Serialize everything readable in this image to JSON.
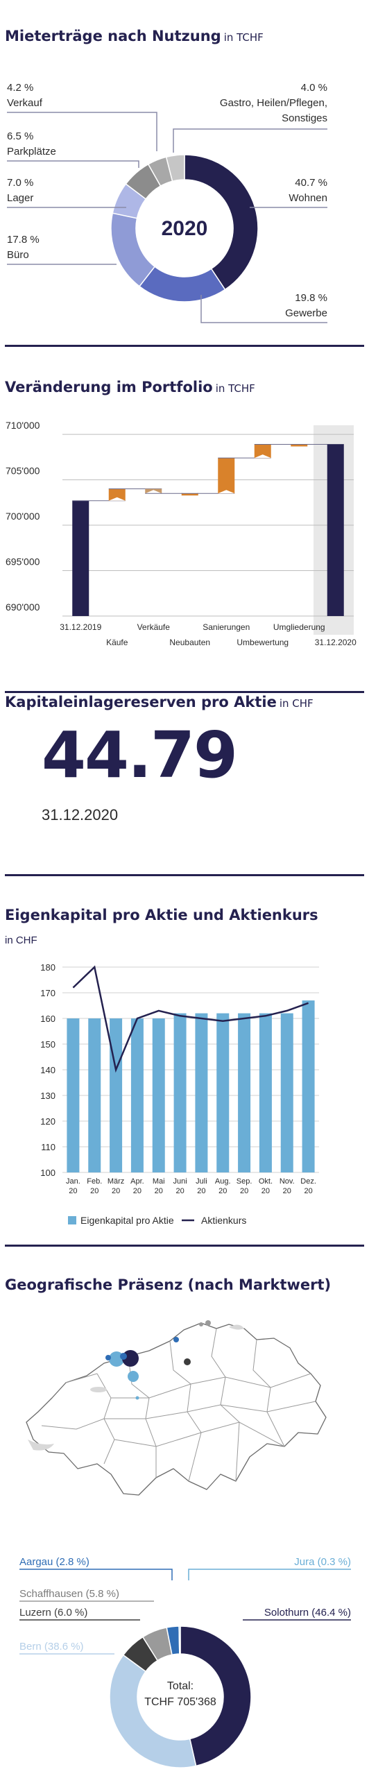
{
  "section1": {
    "title": "Mieterträge nach Nutzung",
    "unit": "in TCHF",
    "center_label": "2020",
    "labels": [
      {
        "pct": "4.2 %",
        "name": "Verkauf"
      },
      {
        "pct": "4.0 %",
        "name": "Gastro, Heilen/Pflegen,",
        "name2": "Sonstiges"
      },
      {
        "pct": "6.5 %",
        "name": "Parkplätze"
      },
      {
        "pct": "7.0 %",
        "name": "Lager"
      },
      {
        "pct": "40.7 %",
        "name": "Wohnen"
      },
      {
        "pct": "17.8 %",
        "name": "Büro"
      },
      {
        "pct": "19.8 %",
        "name": "Gewerbe"
      }
    ]
  },
  "section2": {
    "title": "Veränderung im Portfolio",
    "unit": "in TCHF"
  },
  "section3": {
    "title": "Kapitaleinlagereserven pro Aktie",
    "unit": "in CHF",
    "value": "44.79",
    "date": "31.12.2020"
  },
  "section4": {
    "title": "Eigenkapital pro Aktie und Aktienkurs",
    "unit": "in CHF"
  },
  "section5": {
    "title": "Geografische Präsenz (nach Marktwert)",
    "labels": {
      "aargau": "Aargau (2.8 %)",
      "jura": "Jura (0.3 %)",
      "schaffhausen": "Schaffhausen (5.8 %)",
      "luzern": "Luzern (6.0 %)",
      "solothurn": "Solothurn (46.4 %)",
      "bern": "Bern (38.6 %)"
    },
    "total_label": "Total:",
    "total_value": "TCHF 705'368"
  },
  "colors": {
    "navy": "#24214f",
    "accent_orange": "#d9822b",
    "bar_blue": "#6aaed6",
    "grey": "#9a9a9a"
  },
  "chart_data": [
    {
      "type": "pie",
      "title": "Mieterträge nach Nutzung",
      "center_label": "2020",
      "slices": [
        {
          "name": "Wohnen",
          "value": 40.7,
          "color": "#24214f"
        },
        {
          "name": "Gewerbe",
          "value": 19.8,
          "color": "#5a6bbf"
        },
        {
          "name": "Büro",
          "value": 17.8,
          "color": "#8f9bd6"
        },
        {
          "name": "Lager",
          "value": 7.0,
          "color": "#aeb7e6"
        },
        {
          "name": "Parkplätze",
          "value": 6.5,
          "color": "#8c8c8c"
        },
        {
          "name": "Verkauf",
          "value": 4.2,
          "color": "#a8a8a8"
        },
        {
          "name": "Gastro, Heilen/Pflegen, Sonstiges",
          "value": 4.0,
          "color": "#c6c6c6"
        }
      ]
    },
    {
      "type": "bar",
      "subtype": "waterfall",
      "title": "Veränderung im Portfolio",
      "ylim": [
        690000,
        711000
      ],
      "yticks": [
        "690'000",
        "695'000",
        "700'000",
        "705'000",
        "710'000"
      ],
      "ytick_values": [
        690000,
        695000,
        700000,
        705000,
        710000
      ],
      "categories": [
        "31.12.2019",
        "Käufe",
        "Verkäufe",
        "Neubauten",
        "Sanierungen",
        "Umbewertung",
        "Umgliederung",
        "31.12.2020"
      ],
      "bars": [
        {
          "label": "31.12.2019",
          "kind": "total",
          "value": 702700
        },
        {
          "label": "Käufe",
          "kind": "delta",
          "start": 702700,
          "end": 704000
        },
        {
          "label": "Verkäufe",
          "kind": "delta",
          "start": 704000,
          "end": 703500
        },
        {
          "label": "Neubauten",
          "kind": "delta",
          "start": 703500,
          "end": 703500
        },
        {
          "label": "Sanierungen",
          "kind": "delta",
          "start": 703500,
          "end": 707400
        },
        {
          "label": "Umbewertung",
          "kind": "delta",
          "start": 707400,
          "end": 708900
        },
        {
          "label": "Umgliederung",
          "kind": "delta",
          "start": 708900,
          "end": 708900
        },
        {
          "label": "31.12.2020",
          "kind": "total",
          "value": 708900
        }
      ]
    },
    {
      "type": "bar",
      "title": "Eigenkapital pro Aktie und Aktienkurs",
      "categories": [
        "Jan. 20",
        "Feb. 20",
        "März 20",
        "Apr. 20",
        "Mai 20",
        "Juni 20",
        "Juli 20",
        "Aug. 20",
        "Sep. 20",
        "Okt. 20",
        "Nov. 20",
        "Dez. 20"
      ],
      "ylim": [
        100,
        180
      ],
      "yticks": [
        100,
        110,
        120,
        130,
        140,
        150,
        160,
        170,
        180
      ],
      "series": [
        {
          "name": "Eigenkapital pro Aktie",
          "kind": "bar",
          "values": [
            160,
            160,
            160,
            160,
            160,
            162,
            162,
            162,
            162,
            162,
            162,
            167
          ]
        },
        {
          "name": "Aktienkurs",
          "kind": "line",
          "values": [
            172,
            180,
            140,
            160,
            163,
            161,
            160,
            159,
            160,
            161,
            163,
            166
          ]
        }
      ],
      "legend": "bottom"
    },
    {
      "type": "pie",
      "title": "Geografische Präsenz (nach Marktwert)",
      "total": "TCHF 705'368",
      "slices": [
        {
          "name": "Solothurn",
          "value": 46.4,
          "color": "#24214f"
        },
        {
          "name": "Bern",
          "value": 38.6,
          "color": "#b5cfe8"
        },
        {
          "name": "Luzern",
          "value": 6.0,
          "color": "#3d3d3d"
        },
        {
          "name": "Schaffhausen",
          "value": 5.8,
          "color": "#9a9a9a"
        },
        {
          "name": "Aargau",
          "value": 2.8,
          "color": "#2f6db5"
        },
        {
          "name": "Jura",
          "value": 0.3,
          "color": "#6aaed6"
        }
      ]
    }
  ]
}
